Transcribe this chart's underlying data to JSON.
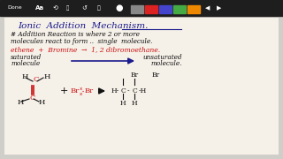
{
  "background_color": "#d0cec8",
  "toolbar_color": "#2a2a2a",
  "whiteboard_color": "#f5f0e8",
  "title": "Ionic  Addition  Mechanism.",
  "title_color": "#1a1a8c",
  "title_underline": true,
  "line1": "# Addition Reaction is where 2 or more",
  "line2": "molecules react to form ..  single  molecule.",
  "line3": "ethene  +  Bromine  →  1, 2 dibromoethane.",
  "line4": "saturated                        unsaturated",
  "line4b": "molecule         →           molecule.",
  "text_color_red": "#cc1111",
  "text_color_blue": "#1a1a8c",
  "text_color_black": "#111111",
  "toolbar_items": [
    "Done",
    "Aa",
    "↺",
    "📷",
    "●"
  ],
  "fig_width": 3.2,
  "fig_height": 1.8,
  "dpi": 100
}
